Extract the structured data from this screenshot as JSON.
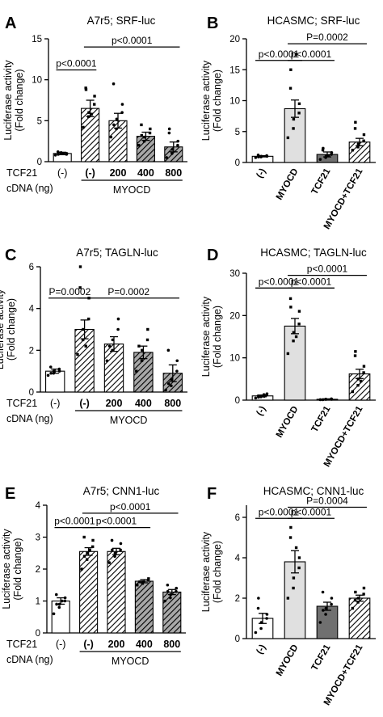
{
  "chart_data": [
    {
      "panel_letter": "A",
      "type": "bar",
      "title": "A7r5; SRF-luc",
      "ylabel": "Luciferase activity",
      "ylabel2": "(Fold change)",
      "ylim": [
        0,
        15
      ],
      "yticks": [
        "0",
        "5",
        "10",
        "15"
      ],
      "ytick_values": [
        0,
        5,
        10,
        15
      ],
      "row_labels": [
        "TCF21",
        "cDNA (ng)"
      ],
      "categories": [
        "(-)",
        "(-)",
        "200",
        "400",
        "800"
      ],
      "group_label": "MYOCD",
      "values": [
        1.0,
        6.5,
        5.0,
        3.1,
        1.8
      ],
      "errors": [
        0.15,
        1.0,
        0.9,
        0.5,
        0.6
      ],
      "styles": [
        "open",
        "hatch-light",
        "hatch-light",
        "hatch-dark",
        "hatch-dark"
      ],
      "points": [
        [
          0.8,
          1.0,
          1.1,
          0.9,
          1.0,
          1.2,
          0.9,
          1.0
        ],
        [
          4.2,
          5.5,
          6.0,
          7.0,
          8.0,
          9.0,
          8.8,
          5.8
        ],
        [
          3.0,
          4.0,
          5.2,
          6.0,
          7.0,
          9.5,
          4.5
        ],
        [
          2.0,
          2.5,
          3.0,
          3.5,
          4.0,
          4.5,
          3.2
        ],
        [
          0.5,
          1.0,
          1.5,
          2.0,
          2.5,
          3.5,
          4.0
        ]
      ],
      "comparisons": [
        {
          "label": "p<0.0001",
          "from": 0,
          "to": 1,
          "y": 11.2
        },
        {
          "label": "p<0.0001",
          "from": 1,
          "to": 4,
          "y": 14.0
        }
      ]
    },
    {
      "panel_letter": "B",
      "type": "bar",
      "title": "HCASMC; SRF-luc",
      "ylabel": "Luciferase activity",
      "ylabel2": "(Fold change)",
      "ylim": [
        0,
        20
      ],
      "yticks": [
        "0",
        "5",
        "10",
        "15",
        "20"
      ],
      "ytick_values": [
        0,
        5,
        10,
        15,
        20
      ],
      "categories": [
        "(-)",
        "MYOCD",
        "TCF21",
        "MYOCD+TCF21"
      ],
      "values": [
        1.0,
        8.7,
        1.3,
        3.3
      ],
      "errors": [
        0.1,
        1.4,
        0.4,
        0.6
      ],
      "styles": [
        "open",
        "solid-light",
        "solid-dark",
        "hatch-light"
      ],
      "points": [
        [
          0.8,
          0.9,
          1.0,
          1.1,
          1.0,
          1.2,
          0.9
        ],
        [
          4.0,
          5.5,
          7.0,
          8.0,
          9.5,
          12.0,
          15.0,
          17.5
        ],
        [
          0.5,
          0.8,
          1.0,
          1.3,
          1.6,
          2.0,
          2.3,
          1.1
        ],
        [
          2.0,
          2.5,
          3.0,
          3.5,
          4.5,
          5.5,
          6.5
        ]
      ],
      "comparisons": [
        {
          "label": "p<0.0001",
          "from": 0,
          "to": 1,
          "y": 16.5
        },
        {
          "label": "p<0.0001",
          "from": 1,
          "to": 2,
          "y": 16.5
        },
        {
          "label": "P=0.0002",
          "from": 1,
          "to": 3,
          "y": 19.2
        }
      ]
    },
    {
      "panel_letter": "C",
      "type": "bar",
      "title": "A7r5; TAGLN-luc",
      "ylabel": "Luciferase activity",
      "ylabel2": "(Fold change)",
      "ylim": [
        0,
        6
      ],
      "yticks": [
        "0",
        "2",
        "4",
        "6"
      ],
      "ytick_values": [
        0,
        2,
        4,
        6
      ],
      "row_labels": [
        "TCF21",
        "cDNA (ng)"
      ],
      "categories": [
        "(-)",
        "(-)",
        "200",
        "400",
        "800"
      ],
      "group_label": "MYOCD",
      "values": [
        1.0,
        3.0,
        2.3,
        1.9,
        0.9
      ],
      "errors": [
        0.1,
        0.45,
        0.35,
        0.3,
        0.4
      ],
      "styles": [
        "open",
        "hatch-light",
        "hatch-light",
        "hatch-dark",
        "hatch-dark"
      ],
      "points": [
        [
          0.8,
          0.9,
          1.0,
          1.1,
          1.0,
          1.2,
          0.9
        ],
        [
          1.8,
          2.5,
          3.0,
          3.5,
          4.5,
          5.0,
          6.0,
          2.2
        ],
        [
          1.5,
          2.0,
          2.5,
          3.0,
          3.5,
          2.2
        ],
        [
          1.0,
          1.5,
          2.0,
          2.5,
          3.0,
          2.2
        ],
        [
          0.1,
          0.3,
          0.6,
          1.0,
          1.5,
          2.0,
          0.4
        ]
      ],
      "comparisons": [
        {
          "label": "P=0.0002",
          "from": 0,
          "to": 1,
          "y": 4.5
        },
        {
          "label": "P=0.0002",
          "from": 1,
          "to": 4,
          "y": 4.5
        }
      ]
    },
    {
      "panel_letter": "D",
      "type": "bar",
      "title": "HCASMC; TAGLN-luc",
      "ylabel": "Luciferase activity",
      "ylabel2": "(Fold change)",
      "ylim": [
        0,
        30
      ],
      "yticks": [
        "0",
        "10",
        "20",
        "30"
      ],
      "ytick_values": [
        0,
        10,
        20,
        30
      ],
      "categories": [
        "(-)",
        "MYOCD",
        "TCF21",
        "MYOCD+TCF21"
      ],
      "values": [
        1.0,
        17.5,
        0.2,
        6.2
      ],
      "errors": [
        0.2,
        1.8,
        0.1,
        1.1
      ],
      "styles": [
        "open",
        "solid-light",
        "solid-dark",
        "hatch-light"
      ],
      "points": [
        [
          0.5,
          0.8,
          1.0,
          1.2,
          1.5,
          1.0,
          0.7,
          1.3,
          0.9
        ],
        [
          11.0,
          14.0,
          16.0,
          18.0,
          21.0,
          24.0,
          22.0,
          15.0
        ],
        [
          0.1,
          0.2,
          0.2,
          0.3,
          0.2,
          0.1
        ],
        [
          2.0,
          3.5,
          5.0,
          6.5,
          8.0,
          10.5,
          11.5,
          4.5
        ]
      ],
      "comparisons": [
        {
          "label": "p<0.0001",
          "from": 0,
          "to": 1,
          "y": 26.5
        },
        {
          "label": "p<0.0001",
          "from": 1,
          "to": 2,
          "y": 26.5
        },
        {
          "label": "p<0.0001",
          "from": 1,
          "to": 3,
          "y": 29.5
        }
      ]
    },
    {
      "panel_letter": "E",
      "type": "bar",
      "title": "A7r5; CNN1-luc",
      "ylabel": "Luciferase activity",
      "ylabel2": "(Fold change)",
      "ylim": [
        0,
        4
      ],
      "yticks": [
        "0",
        "1",
        "2",
        "3",
        "4"
      ],
      "ytick_values": [
        0,
        1,
        2,
        3,
        4
      ],
      "row_labels": [
        "TCF21",
        "cDNA (ng)"
      ],
      "categories": [
        "(-)",
        "(-)",
        "200",
        "400",
        "800"
      ],
      "group_label": "MYOCD",
      "values": [
        1.0,
        2.55,
        2.55,
        1.62,
        1.28
      ],
      "errors": [
        0.1,
        0.12,
        0.1,
        0.05,
        0.08
      ],
      "styles": [
        "open",
        "hatch-light",
        "hatch-light",
        "hatch-dark",
        "hatch-dark"
      ],
      "points": [
        [
          0.6,
          0.8,
          0.9,
          1.0,
          1.1,
          1.2,
          0.9,
          1.0
        ],
        [
          2.0,
          2.3,
          2.5,
          2.7,
          2.9,
          3.0,
          2.4,
          2.6
        ],
        [
          2.2,
          2.4,
          2.5,
          2.6,
          2.8,
          2.9,
          2.6
        ],
        [
          1.5,
          1.55,
          1.6,
          1.65,
          1.7,
          1.6
        ],
        [
          1.0,
          1.1,
          1.2,
          1.3,
          1.4,
          1.5,
          1.3
        ]
      ],
      "comparisons": [
        {
          "label": "p<0.0001",
          "from": 0,
          "to": 1,
          "y": 3.3
        },
        {
          "label": "p<0.0001",
          "from": 1,
          "to": 3,
          "y": 3.3
        },
        {
          "label": "p<0.0001",
          "from": 1,
          "to": 4,
          "y": 3.75
        }
      ]
    },
    {
      "panel_letter": "F",
      "type": "bar",
      "title": "HCASMC; CNN1-luc",
      "ylabel": "Luciferase activity",
      "ylabel2": "(Fold change)",
      "ylim": [
        0,
        6.6
      ],
      "yticks": [
        "0",
        "2",
        "4",
        "6"
      ],
      "ytick_values": [
        0,
        2,
        4,
        6
      ],
      "categories": [
        "(-)",
        "MYOCD",
        "TCF21",
        "MYOCD+TCF21"
      ],
      "values": [
        1.0,
        3.8,
        1.6,
        2.0
      ],
      "errors": [
        0.25,
        0.55,
        0.2,
        0.15
      ],
      "styles": [
        "open",
        "solid-light",
        "solid-dark",
        "hatch-light"
      ],
      "points": [
        [
          0.3,
          0.5,
          0.8,
          1.0,
          1.2,
          1.5,
          2.0
        ],
        [
          2.0,
          2.5,
          3.0,
          3.5,
          4.0,
          5.0,
          5.5,
          4.5
        ],
        [
          0.8,
          1.2,
          1.5,
          1.7,
          2.0,
          2.3,
          1.4
        ],
        [
          1.5,
          1.8,
          2.0,
          2.2,
          2.5,
          1.9,
          2.3
        ]
      ],
      "comparisons": [
        {
          "label": "p<0.0001",
          "from": 0,
          "to": 1,
          "y": 5.95
        },
        {
          "label": "p<0.0001",
          "from": 1,
          "to": 2,
          "y": 5.95
        },
        {
          "label": "P=0.0004",
          "from": 1,
          "to": 3,
          "y": 6.5
        }
      ]
    }
  ]
}
